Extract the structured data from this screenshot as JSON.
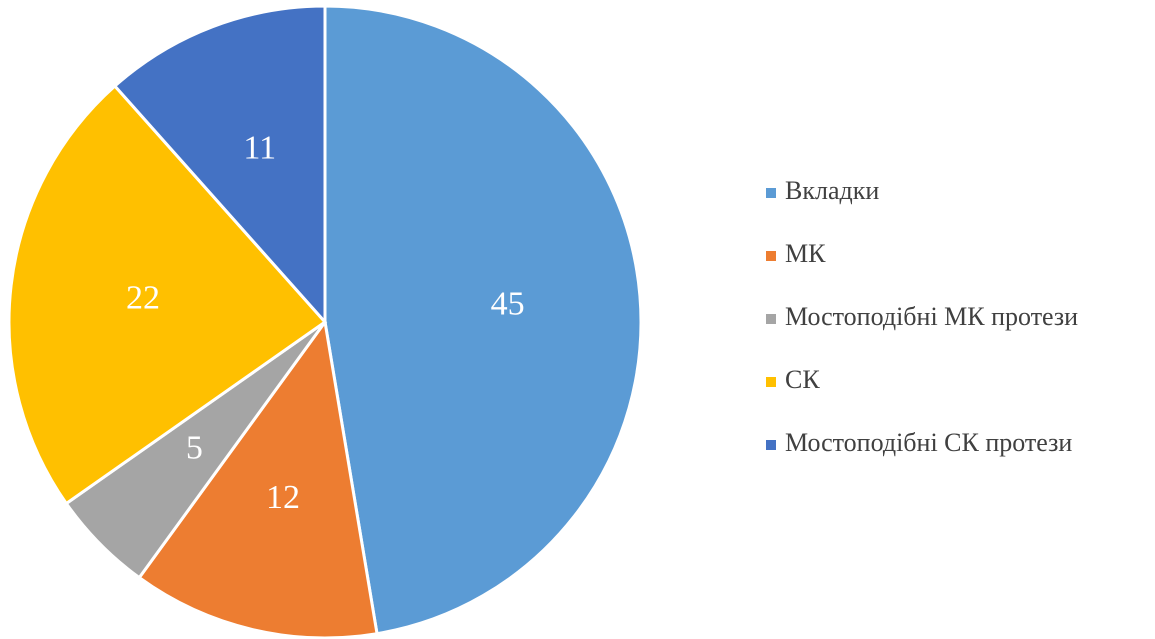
{
  "chart_data": {
    "type": "pie",
    "categories": [
      "Вкладки",
      "МК",
      "Мостоподібні МК протези",
      "СК",
      "Мостоподібні СК протези"
    ],
    "values": [
      45,
      12,
      5,
      22,
      11
    ],
    "colors": [
      "#5b9bd5",
      "#ed7d31",
      "#a5a5a5",
      "#ffc000",
      "#4472c4"
    ],
    "legend": "right"
  }
}
